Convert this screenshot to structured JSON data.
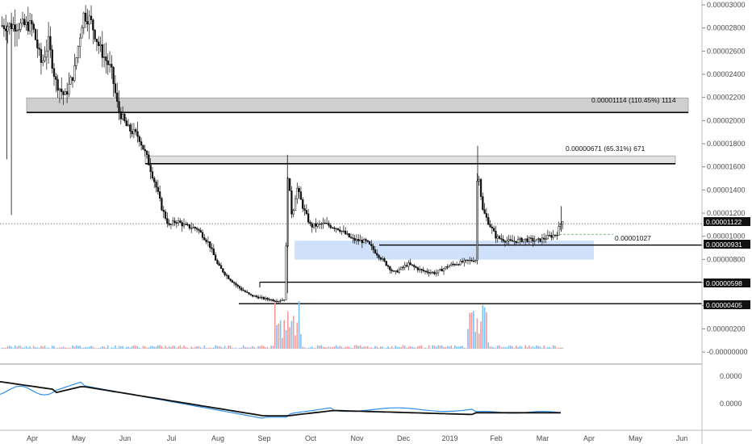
{
  "chart_data": {
    "type": "candlestick",
    "y_ticks": [
      "0.00003000",
      "0.00002800",
      "0.00002600",
      "0.00002400",
      "0.00002200",
      "0.00002000",
      "0.00001800",
      "0.00001600",
      "0.00001400",
      "0.00001200",
      "0.00001000",
      "0.00000800",
      "0.00000600",
      "0.00000400",
      "0.00000200",
      "-0.00000000"
    ],
    "x_ticks": [
      "Apr",
      "May",
      "Jun",
      "Jul",
      "Aug",
      "Sep",
      "Oct",
      "Nov",
      "Dec",
      "2019",
      "Feb",
      "Mar",
      "Apr",
      "May",
      "Jun"
    ],
    "indicator_ticks": [
      "0.0000",
      "0.0000"
    ],
    "price_tags": {
      "last": "0.00001122",
      "level_931": "0.00000931",
      "level_598": "0.00000598",
      "level_405": "0.00000405"
    },
    "annotations": {
      "range_top": "0.00001114 (110.45%) 1114",
      "range_mid": "0.00000671 (65.31%) 671",
      "measure": "0.00001027"
    },
    "price_path": [
      {
        "m": 0.0,
        "p": 2.9e-05
      },
      {
        "m": 0.2,
        "p": 2.55e-05
      },
      {
        "m": 0.35,
        "p": 2.75e-05
      },
      {
        "m": 0.5,
        "p": 2.4e-05
      },
      {
        "m": 0.7,
        "p": 2.26e-05
      },
      {
        "m": 0.9,
        "p": 2.48e-05
      },
      {
        "m": 1.1,
        "p": 3e-05
      },
      {
        "m": 1.25,
        "p": 2.95e-05
      },
      {
        "m": 1.45,
        "p": 2.7e-05
      },
      {
        "m": 1.7,
        "p": 2.5e-05
      },
      {
        "m": 1.85,
        "p": 2.15e-05
      },
      {
        "m": 2.05,
        "p": 1.98e-05
      },
      {
        "m": 2.3,
        "p": 1.9e-05
      },
      {
        "m": 2.5,
        "p": 1.68e-05
      },
      {
        "m": 2.65,
        "p": 1.48e-05
      },
      {
        "m": 2.8,
        "p": 1.25e-05
      },
      {
        "m": 2.95,
        "p": 1.1e-05
      },
      {
        "m": 3.1,
        "p": 1.15e-05
      },
      {
        "m": 3.3,
        "p": 1.1e-05
      },
      {
        "m": 3.55,
        "p": 1.08e-05
      },
      {
        "m": 3.8,
        "p": 9.5e-06
      },
      {
        "m": 4.0,
        "p": 7.5e-06
      },
      {
        "m": 4.2,
        "p": 6.5e-06
      },
      {
        "m": 4.45,
        "p": 5.5e-06
      },
      {
        "m": 4.7,
        "p": 4.8e-06
      },
      {
        "m": 5.0,
        "p": 4.5e-06
      },
      {
        "m": 5.3,
        "p": 4.3e-06
      },
      {
        "m": 5.45,
        "p": 4.5e-06
      },
      {
        "m": 5.5,
        "p": 1.6e-05
      },
      {
        "m": 5.6,
        "p": 1.18e-05
      },
      {
        "m": 5.7,
        "p": 1.45e-05
      },
      {
        "m": 5.85,
        "p": 1.25e-05
      },
      {
        "m": 6.0,
        "p": 1.1e-05
      },
      {
        "m": 6.3,
        "p": 1.12e-05
      },
      {
        "m": 6.6,
        "p": 1.08e-05
      },
      {
        "m": 6.9,
        "p": 9.8e-06
      },
      {
        "m": 7.2,
        "p": 9.6e-06
      },
      {
        "m": 7.5,
        "p": 8.2e-06
      },
      {
        "m": 7.8,
        "p": 6.8e-06
      },
      {
        "m": 8.1,
        "p": 7.6e-06
      },
      {
        "m": 8.4,
        "p": 7e-06
      },
      {
        "m": 8.7,
        "p": 6.8e-06
      },
      {
        "m": 9.0,
        "p": 7.5e-06
      },
      {
        "m": 9.3,
        "p": 7.8e-06
      },
      {
        "m": 9.55,
        "p": 8e-06
      },
      {
        "m": 9.6,
        "p": 1.68e-05
      },
      {
        "m": 9.7,
        "p": 1.25e-05
      },
      {
        "m": 9.85,
        "p": 1.12e-05
      },
      {
        "m": 10.0,
        "p": 1e-05
      },
      {
        "m": 10.3,
        "p": 9.6e-06
      },
      {
        "m": 10.6,
        "p": 9.8e-06
      },
      {
        "m": 10.9,
        "p": 9.7e-06
      },
      {
        "m": 11.1,
        "p": 1e-05
      },
      {
        "m": 11.3,
        "p": 1.03e-05
      },
      {
        "m": 11.45,
        "p": 1.18e-05
      }
    ],
    "volume_ylim": [
      0,
      7e-06
    ],
    "levels": [
      1.122e-05,
      9.31e-06,
      5.98e-06,
      4.05e-06
    ],
    "ylim": [
      -2.8e-07,
      3.085e-05
    ],
    "grid": false
  }
}
